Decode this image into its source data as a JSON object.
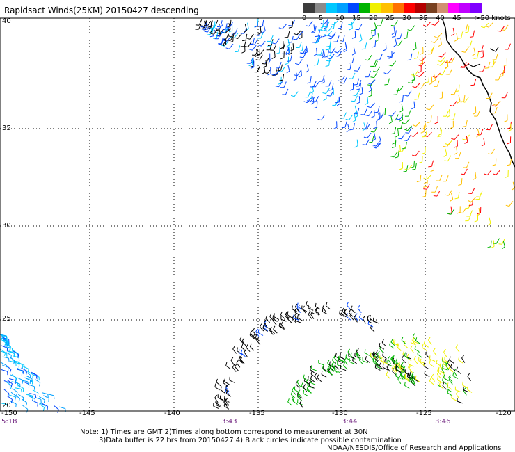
{
  "title": "Rapidsact Winds(25KM) 20150427 descending",
  "legend": {
    "units_label": ">50 knots",
    "ticks": [
      "0",
      "5",
      "10",
      "15",
      "20",
      "25",
      "30",
      "35",
      "40",
      "45"
    ],
    "colors": [
      "#3c3c3c",
      "#8a8a8a",
      "#00c8ff",
      "#00a0ff",
      "#0046ff",
      "#00b400",
      "#f0f000",
      "#ffc000",
      "#ff7000",
      "#ff0000",
      "#b40000",
      "#784020",
      "#d09070",
      "#ff00ff",
      "#c000ff",
      "#8000ff"
    ]
  },
  "lat_labels": [
    "40",
    "35",
    "30",
    "25",
    "20"
  ],
  "lon_labels": [
    "-150",
    "-145",
    "-140",
    "-135",
    "-130",
    "-125",
    "-120"
  ],
  "time_labels": [
    "5:18",
    "3:43",
    "3:44",
    "3:46"
  ],
  "notes": {
    "line1": "Note: 1) Times are GMT 2)Times along bottom correspond to measurement at 30N",
    "line2": "3)Data buffer is 22 hrs from 20150427 4) Black circles indicate possible contamination",
    "line3": "NOAA/NESDIS/Office of Research and Applications"
  },
  "map": {
    "lon_range": [
      -150,
      -120
    ],
    "lat_range": [
      20,
      40
    ],
    "wind_swaths": [
      {
        "name": "northern-descending-swath",
        "colors": [
          "#00c8ff",
          "#0046ff",
          "#00b400",
          "#f0f000",
          "#ffc000",
          "#ff0000",
          "#000000"
        ]
      },
      {
        "name": "southern-arc-swath",
        "colors": [
          "#000000",
          "#00b400",
          "#f0f000",
          "#0046ff"
        ]
      },
      {
        "name": "western-edge-swath",
        "colors": [
          "#0046ff",
          "#00a0ff",
          "#00c8ff"
        ]
      }
    ]
  }
}
